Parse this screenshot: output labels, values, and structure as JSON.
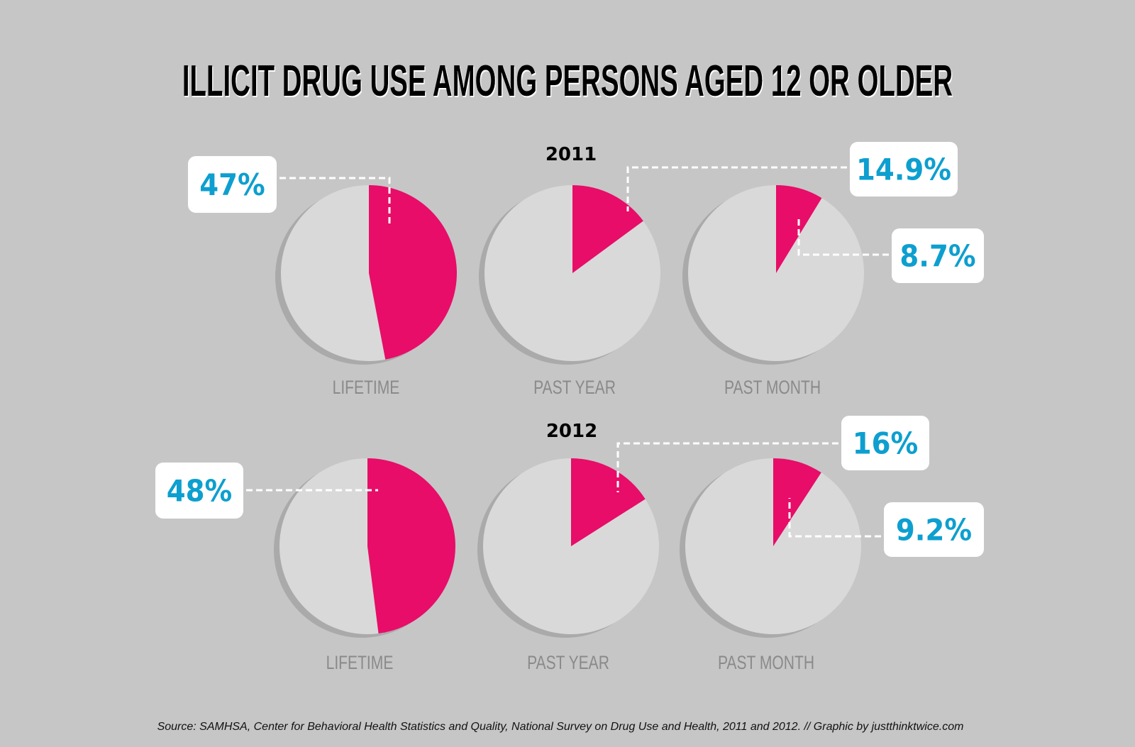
{
  "chart_data": {
    "type": "pie",
    "title": "ILLICIT DRUG USE AMONG PERSONS AGED 12 OR OLDER",
    "groups": [
      {
        "year": "2011",
        "pies": [
          {
            "category": "LIFETIME",
            "value": 47,
            "label": "47%"
          },
          {
            "category": "PAST YEAR",
            "value": 14.9,
            "label": "14.9%"
          },
          {
            "category": "PAST MONTH",
            "value": 8.7,
            "label": "8.7%"
          }
        ]
      },
      {
        "year": "2012",
        "pies": [
          {
            "category": "LIFETIME",
            "value": 48,
            "label": "48%"
          },
          {
            "category": "PAST YEAR",
            "value": 16,
            "label": "16%"
          },
          {
            "category": "PAST MONTH",
            "value": 9.2,
            "label": "9.2%"
          }
        ]
      }
    ],
    "colors": {
      "slice": "#e70d68",
      "rest": "#d9d9d9",
      "shadow": "#aaaaaa",
      "label_text": "#0d9fcf",
      "label_box": "#ffffff",
      "background": "#c6c6c6"
    }
  },
  "source": "Source: SAMHSA, Center for Behavioral Health Statistics and Quality, National Survey on Drug Use and Health, 2011 and 2012.  //  Graphic by justthinktwice.com"
}
